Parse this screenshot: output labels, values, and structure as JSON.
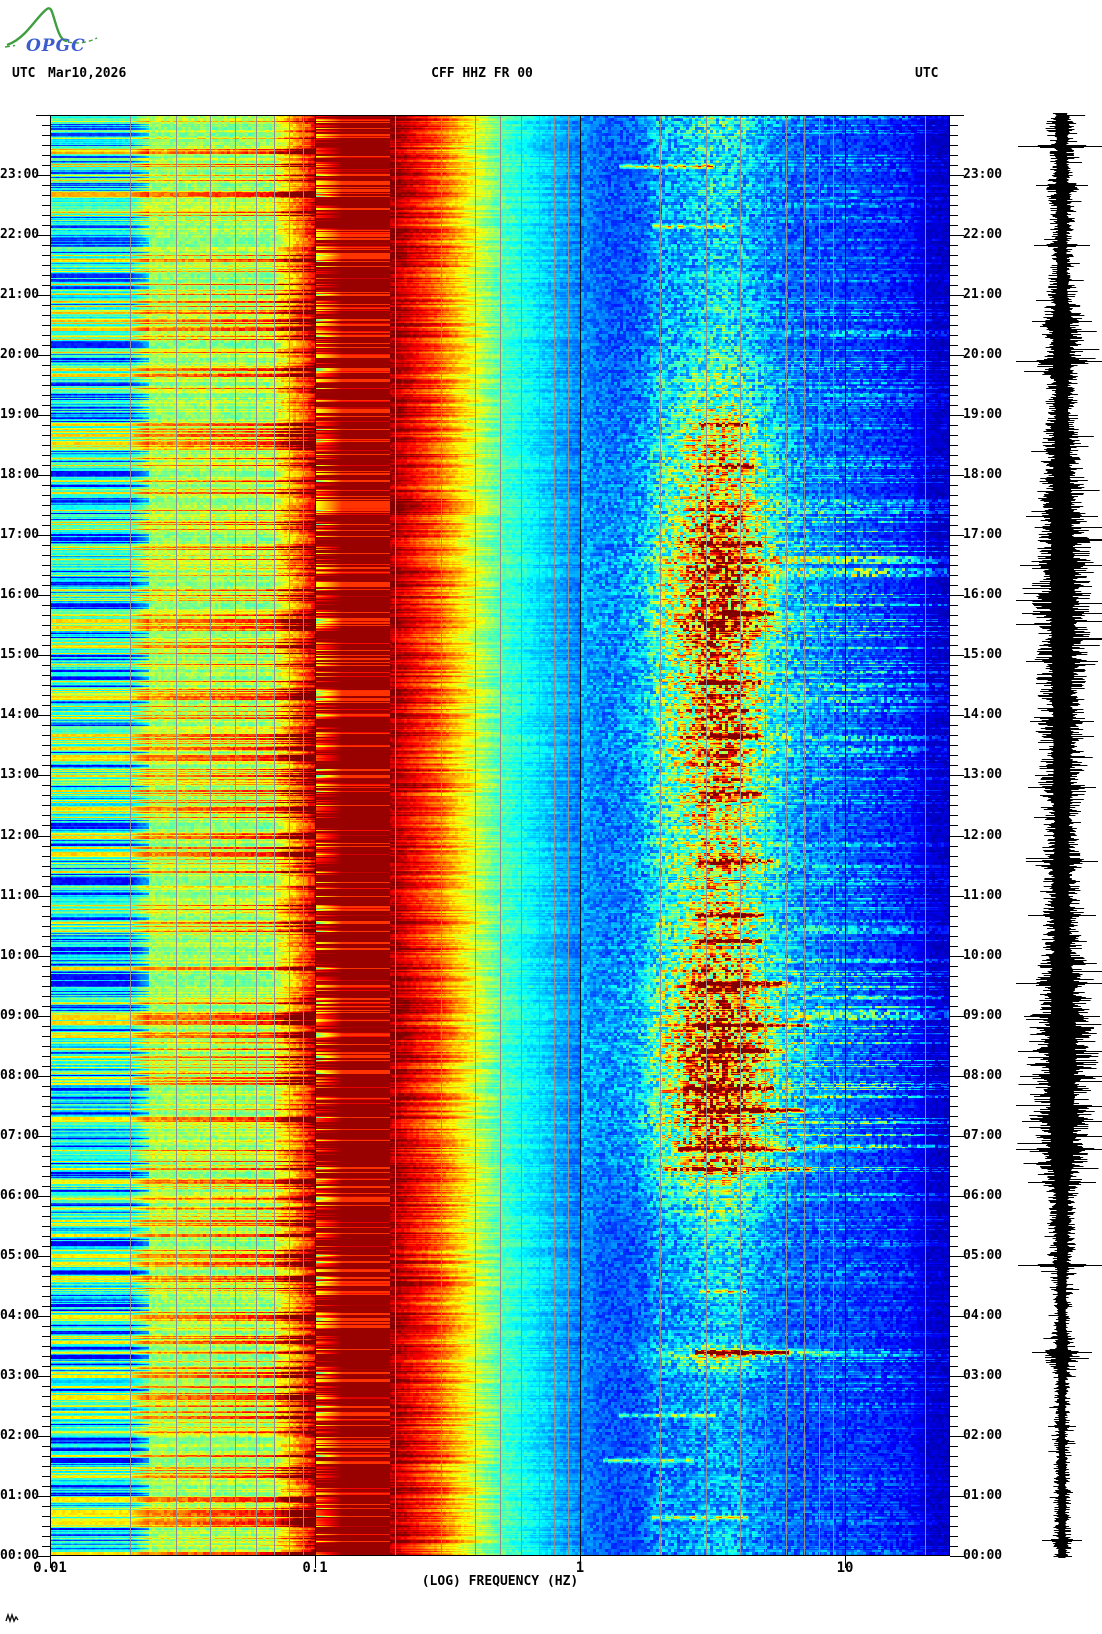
{
  "header": {
    "utc_left": "UTC",
    "date": "Mar10,2026",
    "title": "CFF HHZ FR 00",
    "utc_right": "UTC"
  },
  "logo": {
    "text": "OPGC",
    "green": "#3f9e3f",
    "blue": "#3c5cd0"
  },
  "axes": {
    "freq_label": "(LOG) FREQUENCY (HZ)",
    "freq_ticks": [
      {
        "hz": 0.01,
        "label": "0.01"
      },
      {
        "hz": 0.1,
        "label": "0.1"
      },
      {
        "hz": 1,
        "label": "1"
      },
      {
        "hz": 10,
        "label": "10"
      }
    ],
    "time_labels": [
      "00:00",
      "01:00",
      "02:00",
      "03:00",
      "04:00",
      "05:00",
      "06:00",
      "07:00",
      "08:00",
      "09:00",
      "10:00",
      "11:00",
      "12:00",
      "13:00",
      "14:00",
      "15:00",
      "16:00",
      "17:00",
      "18:00",
      "19:00",
      "20:00",
      "21:00",
      "22:00",
      "23:00"
    ],
    "minor_ticks_per_hour": 6
  },
  "chart_data": {
    "type": "heatmap",
    "title": "CFF HHZ FR 00",
    "subtitle": "24-hour seismic spectrogram with helicorder trace, station CFF channel HHZ network FR location 00",
    "xlabel": "(LOG) FREQUENCY (HZ)",
    "ylabel": "UTC",
    "x_range_hz": [
      0.01,
      25
    ],
    "x_scale": "log",
    "y_range_hours": [
      0,
      24
    ],
    "y_direction": "time increases upward, 00:00 at bottom",
    "colormap": "jet",
    "grid": {
      "minor_color": "#8f8f8f",
      "major_color": "#101010",
      "minor_lines": "2-9 per decade and 20 Hz",
      "major_lines_hz": [
        0.1,
        1,
        10
      ]
    },
    "frequency_bands": [
      {
        "range_hz": [
          0.01,
          0.024
        ],
        "appearance": "cyan-green with horizontal blue/yellow striping"
      },
      {
        "range_hz": [
          0.024,
          0.08
        ],
        "appearance": "yellow-green speckle with orange/red streak rows"
      },
      {
        "range_hz": [
          0.08,
          0.1
        ],
        "appearance": "orange-red streaky column"
      },
      {
        "range_hz": [
          0.1,
          0.2
        ],
        "appearance": "saturated dark-red microseism band with bright red line rows"
      },
      {
        "range_hz": [
          0.2,
          0.5
        ],
        "appearance": "jagged red-orange-yellow-green transition"
      },
      {
        "range_hz": [
          0.5,
          1.5
        ],
        "appearance": "cyan fading to deep blue"
      },
      {
        "range_hz": [
          1.5,
          7
        ],
        "appearance": "tremor band: cyan/yellow swath with red event bursts, strongest 06:00-18:00"
      },
      {
        "range_hz": [
          7,
          20
        ],
        "appearance": "blue with intermittent cyan event lines"
      },
      {
        "range_hz": [
          20,
          25
        ],
        "appearance": "dark navy column"
      }
    ],
    "render_model": {
      "seed": 7,
      "base_profile": [
        [
          -2.0,
          0.4
        ],
        [
          -1.7,
          0.4
        ],
        [
          -1.63,
          0.55
        ],
        [
          -1.17,
          0.56
        ],
        [
          -1.09,
          0.72
        ],
        [
          -1.03,
          0.86
        ],
        [
          -1.0,
          0.95
        ],
        [
          -0.99,
          0.975
        ],
        [
          -0.73,
          0.975
        ],
        [
          -0.67,
          0.89
        ],
        [
          -0.6,
          0.8
        ],
        [
          -0.52,
          0.7
        ],
        [
          -0.43,
          0.6
        ],
        [
          -0.33,
          0.48
        ],
        [
          -0.2,
          0.38
        ],
        [
          -0.08,
          0.3
        ],
        [
          0.0,
          0.25
        ],
        [
          0.1,
          0.19
        ],
        [
          0.22,
          0.175
        ],
        [
          0.75,
          0.175
        ],
        [
          1.05,
          0.165
        ],
        [
          1.24,
          0.13
        ],
        [
          1.32,
          0.07
        ],
        [
          1.4,
          0.06
        ]
      ],
      "activity_center_hz": 3.3,
      "activity_sigma_log": 0.13,
      "veil_sigma_log": 0.34,
      "hf_center_hz": 11,
      "hf_sigma_log": 0.28,
      "activity_envelope": [
        [
          0,
          0.18
        ],
        [
          1,
          0.15
        ],
        [
          2,
          0.14
        ],
        [
          3,
          0.15
        ],
        [
          3.3,
          0.45
        ],
        [
          3.6,
          0.22
        ],
        [
          4,
          0.18
        ],
        [
          5,
          0.22
        ],
        [
          6,
          0.35
        ],
        [
          6.6,
          0.65
        ],
        [
          7,
          0.75
        ],
        [
          7.5,
          0.85
        ],
        [
          8,
          0.85
        ],
        [
          8.6,
          0.9
        ],
        [
          9,
          0.8
        ],
        [
          9.6,
          0.75
        ],
        [
          10,
          0.6
        ],
        [
          10.7,
          0.55
        ],
        [
          11,
          0.5
        ],
        [
          11.6,
          0.6
        ],
        [
          12,
          0.52
        ],
        [
          12.7,
          0.65
        ],
        [
          13,
          0.6
        ],
        [
          13.7,
          0.75
        ],
        [
          14,
          0.7
        ],
        [
          15,
          0.75
        ],
        [
          15.7,
          0.85
        ],
        [
          16,
          0.8
        ],
        [
          16.8,
          0.8
        ],
        [
          17,
          0.72
        ],
        [
          17.5,
          0.62
        ],
        [
          18,
          0.55
        ],
        [
          18.4,
          0.6
        ],
        [
          19,
          0.45
        ],
        [
          19.5,
          0.35
        ],
        [
          20,
          0.28
        ],
        [
          21,
          0.22
        ],
        [
          22,
          0.2
        ],
        [
          23,
          0.22
        ],
        [
          23.5,
          0.28
        ],
        [
          24,
          0.3
        ]
      ],
      "hf_envelope": [
        [
          0,
          0.15
        ],
        [
          2,
          0.1
        ],
        [
          3.4,
          0.3
        ],
        [
          4,
          0.12
        ],
        [
          5,
          0.15
        ],
        [
          6,
          0.3
        ],
        [
          6.8,
          0.55
        ],
        [
          7.5,
          0.5
        ],
        [
          8.5,
          0.5
        ],
        [
          9.5,
          0.45
        ],
        [
          10,
          0.3
        ],
        [
          11,
          0.22
        ],
        [
          12,
          0.22
        ],
        [
          13,
          0.25
        ],
        [
          14,
          0.3
        ],
        [
          15,
          0.38
        ],
        [
          15.8,
          0.5
        ],
        [
          16.5,
          0.52
        ],
        [
          17,
          0.45
        ],
        [
          17.5,
          0.35
        ],
        [
          18,
          0.25
        ],
        [
          19,
          0.18
        ],
        [
          19.9,
          0.3
        ],
        [
          20.5,
          0.25
        ],
        [
          21,
          0.16
        ],
        [
          22,
          0.14
        ],
        [
          23,
          0.18
        ],
        [
          24,
          0.22
        ]
      ],
      "events": [
        {
          "t": 0.65,
          "f1": 2.0,
          "f2": 4.0,
          "s": 0.3
        },
        {
          "t": 1.6,
          "f1": 1.3,
          "f2": 2.5,
          "s": 0.3
        },
        {
          "t": 2.35,
          "f1": 1.5,
          "f2": 3.0,
          "s": 0.25
        },
        {
          "t": 3.4,
          "f1": 2.9,
          "f2": 5.7,
          "s": 0.95,
          "tail": 25
        },
        {
          "t": 4.42,
          "f1": 3.0,
          "f2": 4.0,
          "s": 0.45
        },
        {
          "t": 6.45,
          "f1": 2.2,
          "f2": 7.0,
          "s": 0.5,
          "tail": 20
        },
        {
          "t": 6.78,
          "f1": 2.5,
          "f2": 6.0,
          "s": 0.8,
          "tail": 18
        },
        {
          "t": 7.42,
          "f1": 3.0,
          "f2": 6.5,
          "s": 0.75,
          "tail": 12
        },
        {
          "t": 7.8,
          "f1": 2.6,
          "f2": 5.0,
          "s": 0.6
        },
        {
          "t": 8.42,
          "f1": 3.0,
          "f2": 4.8,
          "s": 0.95,
          "tail": 8
        },
        {
          "t": 8.85,
          "f1": 2.6,
          "f2": 7.0,
          "s": 0.6,
          "tail": 12
        },
        {
          "t": 9.55,
          "f1": 2.8,
          "f2": 5.5,
          "s": 0.95,
          "tail": 10
        },
        {
          "t": 10.25,
          "f1": 3.0,
          "f2": 4.5,
          "s": 0.8
        },
        {
          "t": 10.68,
          "f1": 2.9,
          "f2": 4.6,
          "s": 0.7
        },
        {
          "t": 11.58,
          "f1": 3.0,
          "f2": 5.0,
          "s": 0.6,
          "tail": 8
        },
        {
          "t": 12.7,
          "f1": 3.0,
          "f2": 4.5,
          "s": 0.65
        },
        {
          "t": 13.65,
          "f1": 3.2,
          "f2": 4.6,
          "s": 0.7
        },
        {
          "t": 14.55,
          "f1": 3.0,
          "f2": 4.6,
          "s": 0.55
        },
        {
          "t": 15.7,
          "f1": 3.5,
          "f2": 5.0,
          "s": 0.9,
          "tail": 9
        },
        {
          "t": 16.85,
          "f1": 3.0,
          "f2": 4.5,
          "s": 0.6
        },
        {
          "t": 18.15,
          "f1": 3.0,
          "f2": 4.2,
          "s": 0.55
        },
        {
          "t": 18.85,
          "f1": 3.0,
          "f2": 4.0,
          "s": 0.45
        },
        {
          "t": 22.15,
          "f1": 2.0,
          "f2": 3.5,
          "s": 0.35
        },
        {
          "t": 23.15,
          "f1": 1.5,
          "f2": 3.0,
          "s": 0.35
        }
      ],
      "waveform": {
        "color": "#000000",
        "envelope": [
          [
            0,
            10
          ],
          [
            0.5,
            9
          ],
          [
            1,
            9
          ],
          [
            2,
            8
          ],
          [
            3,
            9
          ],
          [
            3.4,
            20
          ],
          [
            3.6,
            12
          ],
          [
            4,
            10
          ],
          [
            4.8,
            13
          ],
          [
            5,
            14
          ],
          [
            5.5,
            15
          ],
          [
            6,
            16
          ],
          [
            6.4,
            22
          ],
          [
            6.8,
            34
          ],
          [
            7,
            30
          ],
          [
            7.3,
            36
          ],
          [
            7.6,
            32
          ],
          [
            8,
            34
          ],
          [
            8.4,
            38
          ],
          [
            8.8,
            34
          ],
          [
            9,
            32
          ],
          [
            9.3,
            30
          ],
          [
            9.6,
            33
          ],
          [
            10,
            22
          ],
          [
            10.4,
            20
          ],
          [
            10.7,
            24
          ],
          [
            11,
            18
          ],
          [
            11.6,
            22
          ],
          [
            12,
            18
          ],
          [
            12.4,
            20
          ],
          [
            12.8,
            26
          ],
          [
            13,
            22
          ],
          [
            13.5,
            24
          ],
          [
            14,
            24
          ],
          [
            14.5,
            26
          ],
          [
            15,
            28
          ],
          [
            15.5,
            30
          ],
          [
            16,
            30
          ],
          [
            16.5,
            33
          ],
          [
            17,
            28
          ],
          [
            17.5,
            26
          ],
          [
            18,
            22
          ],
          [
            18.5,
            20
          ],
          [
            19,
            17
          ],
          [
            19.5,
            16
          ],
          [
            19.9,
            28
          ],
          [
            20,
            22
          ],
          [
            20.3,
            24
          ],
          [
            20.6,
            22
          ],
          [
            21,
            15
          ],
          [
            21.5,
            13
          ],
          [
            22,
            11
          ],
          [
            22.3,
            14
          ],
          [
            22.8,
            16
          ],
          [
            23,
            12
          ],
          [
            23.5,
            13
          ],
          [
            23.8,
            18
          ],
          [
            24,
            14
          ]
        ],
        "spikes": [
          [
            0.3,
            20
          ],
          [
            2.2,
            14
          ],
          [
            3.42,
            30
          ],
          [
            4.87,
            44
          ],
          [
            6.25,
            34
          ],
          [
            6.8,
            46
          ],
          [
            7.25,
            40
          ],
          [
            8.0,
            42
          ],
          [
            8.42,
            44
          ],
          [
            9.0,
            38
          ],
          [
            9.55,
            46
          ],
          [
            10.68,
            34
          ],
          [
            11.58,
            36
          ],
          [
            12.8,
            34
          ],
          [
            13.9,
            32
          ],
          [
            14.9,
            36
          ],
          [
            15.7,
            40
          ],
          [
            16.5,
            42
          ],
          [
            17.3,
            36
          ],
          [
            19.88,
            46
          ],
          [
            20.55,
            30
          ],
          [
            21.8,
            28
          ],
          [
            22.8,
            26
          ],
          [
            23.45,
            44
          ]
        ]
      }
    }
  }
}
